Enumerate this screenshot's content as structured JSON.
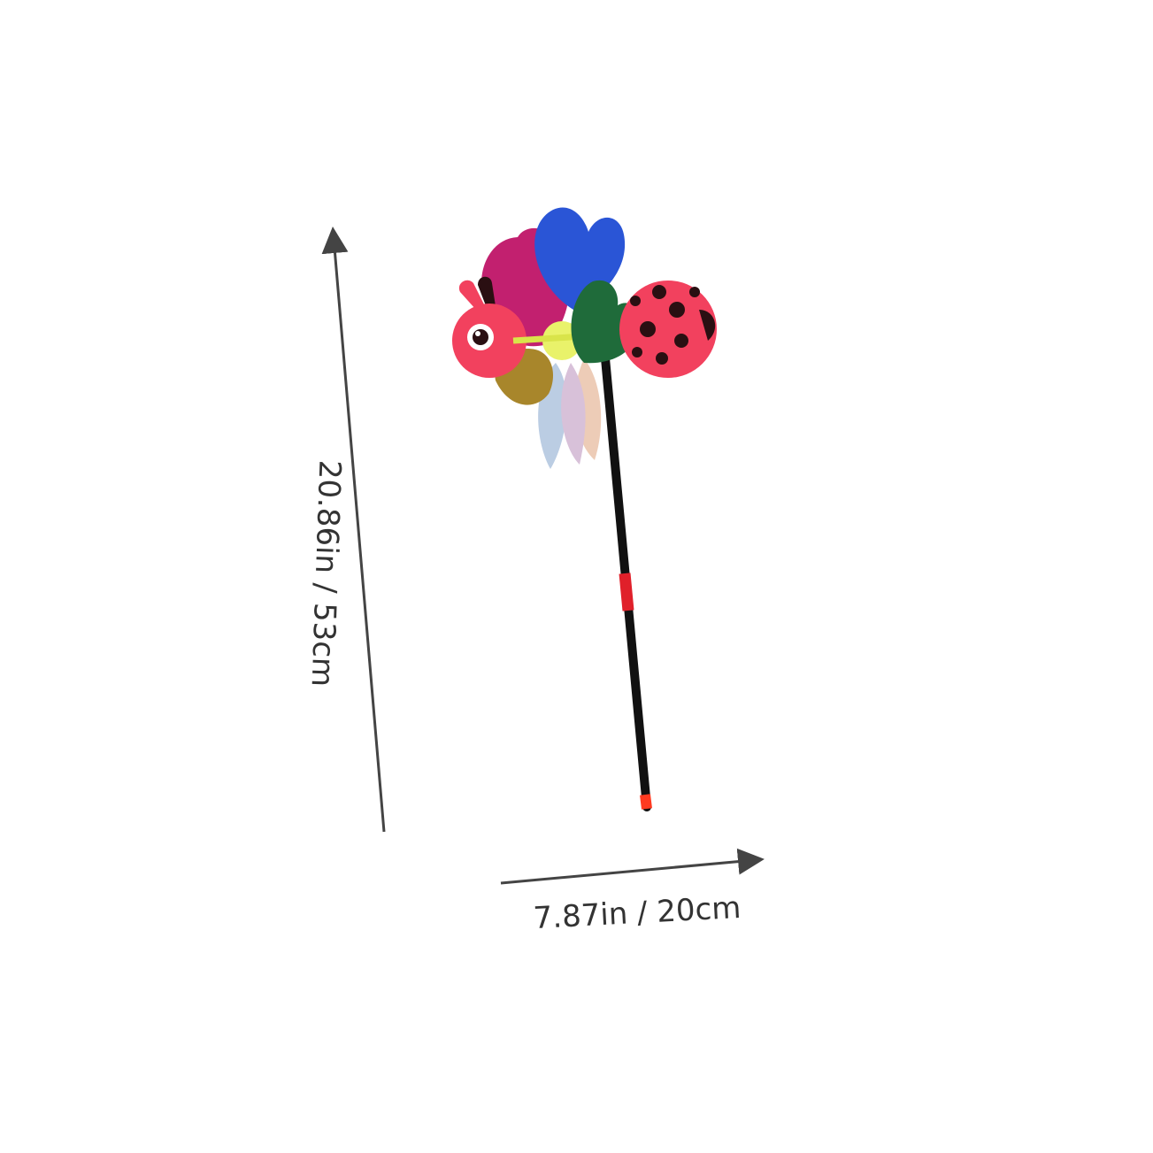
{
  "product": {
    "name_icon": "ladybug-pinwheel-icon"
  },
  "dimensions": {
    "height_label": "20.86in / 53cm",
    "width_label": "7.87in / 20cm"
  },
  "colors": {
    "arrow": "#444444",
    "ladybug_red": "#f2415e",
    "spot": "#2a0f12",
    "wing_blue": "#2a55d6",
    "wing_magenta": "#c2206f",
    "wing_green": "#1f6b3a",
    "wing_gold": "#a8862b",
    "stick": "#111111",
    "stick_band": "#e0202a"
  }
}
